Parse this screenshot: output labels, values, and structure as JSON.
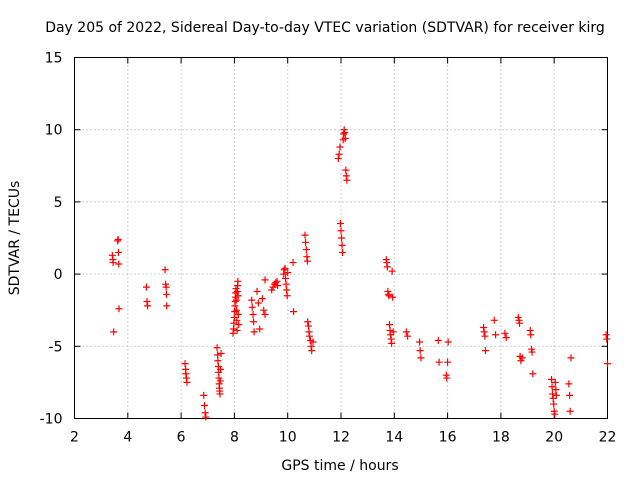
{
  "chart_data": {
    "type": "scatter",
    "title": "Day 205 of 2022, Sidereal Day-to-day VTEC variation (SDTVAR) for receiver kirg",
    "xlabel": "GPS time / hours",
    "ylabel": "SDTVAR / TECUs",
    "xlim": [
      2,
      22
    ],
    "ylim": [
      -10,
      15
    ],
    "xticks": [
      2,
      4,
      6,
      8,
      10,
      12,
      14,
      16,
      18,
      20,
      22
    ],
    "yticks": [
      -10,
      -5,
      0,
      5,
      10,
      15
    ],
    "xtick_labels": [
      "2",
      "4",
      "6",
      "8",
      "10",
      "12",
      "14",
      "16",
      "18",
      "20",
      "22"
    ],
    "ytick_labels": [
      "-10",
      "-5",
      "0",
      "5",
      "10",
      "15"
    ],
    "grid": true,
    "marker": "plus",
    "series": [
      {
        "name": "SDTVAR",
        "color": "#ff0000",
        "points": [
          [
            3.42,
            1.3
          ],
          [
            3.44,
            1.0
          ],
          [
            3.45,
            0.8
          ],
          [
            3.47,
            -4.0
          ],
          [
            3.62,
            2.3
          ],
          [
            3.64,
            2.4
          ],
          [
            3.65,
            1.5
          ],
          [
            3.66,
            0.7
          ],
          [
            3.67,
            -2.4
          ],
          [
            4.7,
            -0.9
          ],
          [
            4.72,
            -1.9
          ],
          [
            4.74,
            -2.2
          ],
          [
            5.4,
            0.3
          ],
          [
            5.42,
            -0.7
          ],
          [
            5.44,
            -0.9
          ],
          [
            5.45,
            -1.4
          ],
          [
            5.46,
            -2.2
          ],
          [
            6.15,
            -6.2
          ],
          [
            6.17,
            -6.6
          ],
          [
            6.18,
            -6.9
          ],
          [
            6.2,
            -7.2
          ],
          [
            6.22,
            -7.5
          ],
          [
            6.85,
            -8.4
          ],
          [
            6.88,
            -9.1
          ],
          [
            6.9,
            -9.6
          ],
          [
            6.93,
            -9.9
          ],
          [
            7.35,
            -5.1
          ],
          [
            7.37,
            -5.6
          ],
          [
            7.38,
            -6.0
          ],
          [
            7.4,
            -6.4
          ],
          [
            7.41,
            -6.8
          ],
          [
            7.42,
            -7.2
          ],
          [
            7.43,
            -7.6
          ],
          [
            7.44,
            -7.9
          ],
          [
            7.45,
            -8.1
          ],
          [
            7.46,
            -8.3
          ],
          [
            7.47,
            -7.4
          ],
          [
            7.48,
            -6.6
          ],
          [
            7.5,
            -5.5
          ],
          [
            7.95,
            -4.1
          ],
          [
            7.97,
            -3.8
          ],
          [
            7.98,
            -3.4
          ],
          [
            8.0,
            -3.0
          ],
          [
            8.01,
            -2.6
          ],
          [
            8.02,
            -2.2
          ],
          [
            8.03,
            -1.9
          ],
          [
            8.04,
            -1.6
          ],
          [
            8.05,
            -1.3
          ],
          [
            8.06,
            -1.0
          ],
          [
            8.07,
            -1.8
          ],
          [
            8.08,
            -2.5
          ],
          [
            8.09,
            -3.2
          ],
          [
            8.1,
            -3.9
          ],
          [
            8.11,
            -1.2
          ],
          [
            8.12,
            -0.8
          ],
          [
            8.13,
            -0.5
          ],
          [
            8.14,
            -1.5
          ],
          [
            8.15,
            -2.8
          ],
          [
            8.16,
            -3.5
          ],
          [
            8.65,
            -1.8
          ],
          [
            8.67,
            -2.3
          ],
          [
            8.7,
            -2.8
          ],
          [
            8.72,
            -3.3
          ],
          [
            8.74,
            -4.0
          ],
          [
            8.85,
            -1.2
          ],
          [
            8.9,
            -2.0
          ],
          [
            8.95,
            -3.8
          ],
          [
            9.05,
            -1.7
          ],
          [
            9.1,
            -2.5
          ],
          [
            9.15,
            -2.8
          ],
          [
            9.15,
            -0.4
          ],
          [
            9.4,
            -1.1
          ],
          [
            9.45,
            -0.9
          ],
          [
            9.5,
            -0.7
          ],
          [
            9.55,
            -0.6
          ],
          [
            9.6,
            -0.5
          ],
          [
            9.62,
            -0.8
          ],
          [
            9.85,
            0.0
          ],
          [
            9.87,
            0.3
          ],
          [
            9.9,
            0.4
          ],
          [
            9.92,
            -0.3
          ],
          [
            9.94,
            -0.7
          ],
          [
            9.96,
            -1.1
          ],
          [
            9.98,
            -1.5
          ],
          [
            10.0,
            0.1
          ],
          [
            10.2,
            0.8
          ],
          [
            10.22,
            -2.6
          ],
          [
            10.65,
            2.7
          ],
          [
            10.67,
            2.2
          ],
          [
            10.7,
            1.7
          ],
          [
            10.72,
            1.2
          ],
          [
            10.74,
            0.9
          ],
          [
            10.75,
            -3.3
          ],
          [
            10.78,
            -3.6
          ],
          [
            10.8,
            -4.0
          ],
          [
            10.82,
            -4.3
          ],
          [
            10.85,
            -4.6
          ],
          [
            10.88,
            -5.0
          ],
          [
            10.9,
            -5.3
          ],
          [
            10.95,
            -4.7
          ],
          [
            11.9,
            8.0
          ],
          [
            11.93,
            8.3
          ],
          [
            11.96,
            8.8
          ],
          [
            11.98,
            3.5
          ],
          [
            12.0,
            3.0
          ],
          [
            12.02,
            2.5
          ],
          [
            12.04,
            2.0
          ],
          [
            12.06,
            1.5
          ],
          [
            12.08,
            9.3
          ],
          [
            12.1,
            9.7
          ],
          [
            12.12,
            10.0
          ],
          [
            12.14,
            9.8
          ],
          [
            12.16,
            9.4
          ],
          [
            12.18,
            7.2
          ],
          [
            12.2,
            6.8
          ],
          [
            12.22,
            6.5
          ],
          [
            13.7,
            1.0
          ],
          [
            13.72,
            0.8
          ],
          [
            13.74,
            0.5
          ],
          [
            13.76,
            -1.2
          ],
          [
            13.78,
            -1.4
          ],
          [
            13.8,
            -1.5
          ],
          [
            13.82,
            -3.5
          ],
          [
            13.84,
            -3.9
          ],
          [
            13.86,
            -4.2
          ],
          [
            13.88,
            -4.5
          ],
          [
            13.9,
            -4.8
          ],
          [
            13.92,
            0.2
          ],
          [
            13.94,
            -1.6
          ],
          [
            13.96,
            -4.0
          ],
          [
            14.45,
            -4.0
          ],
          [
            14.5,
            -4.3
          ],
          [
            14.95,
            -4.7
          ],
          [
            14.97,
            -5.3
          ],
          [
            15.0,
            -5.8
          ],
          [
            15.65,
            -4.6
          ],
          [
            15.68,
            -6.1
          ],
          [
            15.95,
            -7.0
          ],
          [
            15.97,
            -7.2
          ],
          [
            16.0,
            -6.1
          ],
          [
            16.02,
            -4.7
          ],
          [
            17.35,
            -3.7
          ],
          [
            17.37,
            -4.0
          ],
          [
            17.4,
            -4.3
          ],
          [
            17.42,
            -5.3
          ],
          [
            17.75,
            -3.2
          ],
          [
            17.8,
            -4.2
          ],
          [
            18.15,
            -4.1
          ],
          [
            18.2,
            -4.4
          ],
          [
            18.65,
            -3.0
          ],
          [
            18.68,
            -3.2
          ],
          [
            18.7,
            -3.4
          ],
          [
            18.72,
            -5.7
          ],
          [
            18.75,
            -6.0
          ],
          [
            18.8,
            -5.8
          ],
          [
            19.1,
            -3.9
          ],
          [
            19.12,
            -4.2
          ],
          [
            19.15,
            -5.2
          ],
          [
            19.17,
            -5.4
          ],
          [
            19.2,
            -6.9
          ],
          [
            19.9,
            -7.3
          ],
          [
            19.92,
            -7.8
          ],
          [
            19.94,
            -8.3
          ],
          [
            19.96,
            -8.6
          ],
          [
            19.98,
            -9.0
          ],
          [
            20.0,
            -9.5
          ],
          [
            20.02,
            -9.7
          ],
          [
            20.04,
            -7.5
          ],
          [
            20.06,
            -8.0
          ],
          [
            20.08,
            -8.4
          ],
          [
            20.55,
            -7.6
          ],
          [
            20.58,
            -8.4
          ],
          [
            20.6,
            -9.5
          ],
          [
            20.63,
            -5.8
          ],
          [
            21.95,
            -4.2
          ],
          [
            21.97,
            -4.5
          ],
          [
            22.0,
            -6.2
          ]
        ]
      }
    ]
  }
}
